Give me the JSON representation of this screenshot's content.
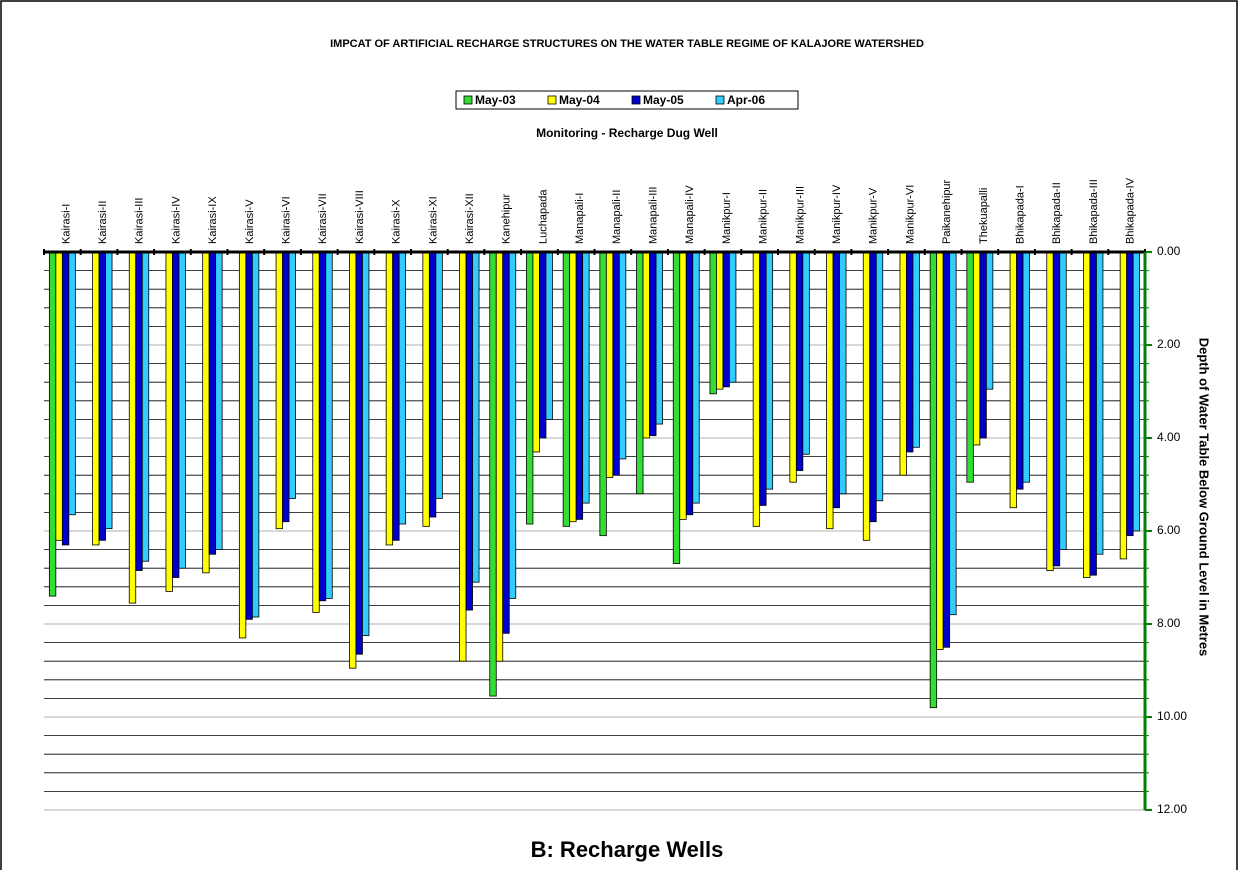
{
  "chart_data": {
    "type": "bar",
    "title": "IMPCAT OF ARTIFICIAL RECHARGE STRUCTURES ON THE WATER TABLE REGIME OF KALAJORE WATERSHED",
    "subtitle": "Monitoring - Recharge Dug Well",
    "y_label": "Depth of Water Table Below Ground Level in Metres",
    "caption": "B: Recharge Wells",
    "categories": [
      "Kairasi-I",
      "Kairasi-II",
      "Kairasi-III",
      "Kairasi-IV",
      "Kairasi-IX",
      "Kairasi-V",
      "Kairasi-VI",
      "Kairasi-VII",
      "Kairasi-VIII",
      "Kairasi-X",
      "Kairasi-XI",
      "Kairasi-XII",
      "Kanehipur",
      "Luchapada",
      "Manapali-I",
      "Manapali-II",
      "Manapali-III",
      "Manapali-IV",
      "Manikpur-I",
      "Manikpur-II",
      "Manikpur-III",
      "Manikpur-IV",
      "Manikpur-V",
      "Manikpur-VI",
      "Paikanehipur",
      "Thekuapalli",
      "Bhikapada-I",
      "Bhikapada-II",
      "Bhikapada-III",
      "Bhikapada-IV"
    ],
    "series": [
      {
        "name": "May-03",
        "color": "#33dd33",
        "values": [
          7.4,
          null,
          null,
          null,
          null,
          null,
          null,
          null,
          null,
          null,
          null,
          null,
          9.55,
          5.85,
          5.9,
          6.1,
          5.2,
          6.7,
          3.05,
          null,
          null,
          null,
          null,
          null,
          9.8,
          4.95,
          null,
          null,
          null,
          null
        ]
      },
      {
        "name": "May-04",
        "color": "#ffff00",
        "values": [
          6.2,
          6.3,
          7.55,
          7.3,
          6.9,
          8.3,
          5.95,
          7.75,
          8.95,
          6.3,
          5.9,
          8.8,
          8.8,
          4.3,
          5.8,
          4.85,
          4.0,
          5.75,
          2.95,
          5.9,
          4.95,
          5.95,
          6.2,
          4.8,
          8.55,
          4.15,
          5.5,
          6.85,
          7.0,
          6.6
        ]
      },
      {
        "name": "May-05",
        "color": "#0000cc",
        "values": [
          6.3,
          6.2,
          6.85,
          7.0,
          6.5,
          7.9,
          5.8,
          7.5,
          8.65,
          6.2,
          5.7,
          7.7,
          8.2,
          4.0,
          5.75,
          4.8,
          3.95,
          5.65,
          2.9,
          5.45,
          4.7,
          5.5,
          5.8,
          4.3,
          8.5,
          4.0,
          5.1,
          6.75,
          6.95,
          6.1
        ]
      },
      {
        "name": "Apr-06",
        "color": "#33ccff",
        "values": [
          5.65,
          5.95,
          6.65,
          6.8,
          6.4,
          7.85,
          5.3,
          7.45,
          8.25,
          5.85,
          5.3,
          7.1,
          7.45,
          3.6,
          5.4,
          4.45,
          3.7,
          5.4,
          2.8,
          5.1,
          4.35,
          5.2,
          5.35,
          4.2,
          7.8,
          2.95,
          4.95,
          6.4,
          6.5,
          6.0
        ]
      }
    ],
    "ylim": [
      0,
      12
    ],
    "y_inverted": true,
    "yticks": [
      {
        "value": 0,
        "label": "0.00"
      },
      {
        "value": 2,
        "label": "2.00"
      },
      {
        "value": 4,
        "label": "4.00"
      },
      {
        "value": 6,
        "label": "6.00"
      },
      {
        "value": 8,
        "label": "8.00"
      },
      {
        "value": 10,
        "label": "10.00"
      },
      {
        "value": 12,
        "label": "12.00"
      }
    ],
    "yticks_minor": [
      0.4,
      0.8,
      1.2,
      1.6,
      2.4,
      2.8,
      3.2,
      3.6,
      4.4,
      4.8,
      5.2,
      5.6,
      6.4,
      6.8,
      7.2,
      7.6,
      8.4,
      8.8,
      9.2,
      9.6,
      10.4,
      10.8,
      11.2,
      11.6
    ],
    "grid": true,
    "axis_color": "#008000",
    "legend": "top"
  }
}
